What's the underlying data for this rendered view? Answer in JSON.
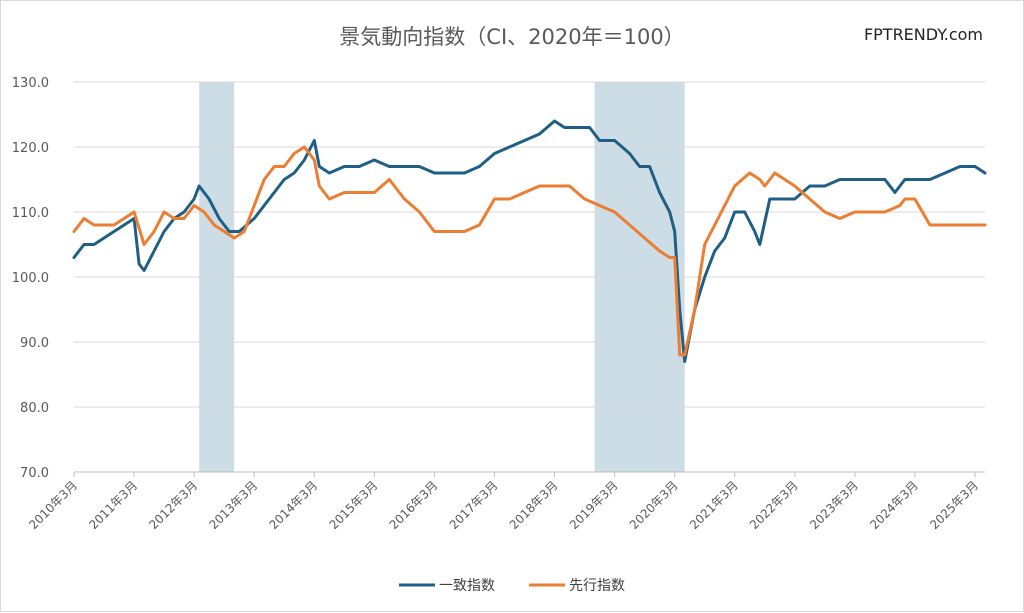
{
  "header": {
    "title": "景気動向指数（CI、2020年＝100）",
    "brand": "FPTRENDY.com"
  },
  "chart_data": {
    "type": "line",
    "title": "景気動向指数（CI、2020年＝100）",
    "xlabel": "",
    "ylabel": "",
    "ylim": [
      70,
      130
    ],
    "yticks": [
      "70.0",
      "80.0",
      "90.0",
      "100.0",
      "110.0",
      "120.0",
      "130.0"
    ],
    "x_range": [
      "2010-03",
      "2025-05"
    ],
    "xticks": [
      "2010年3月",
      "2011年3月",
      "2012年3月",
      "2013年3月",
      "2014年3月",
      "2015年3月",
      "2016年3月",
      "2017年3月",
      "2018年3月",
      "2019年3月",
      "2020年3月",
      "2021年3月",
      "2022年3月",
      "2023年3月",
      "2024年3月",
      "2025年3月"
    ],
    "grid": true,
    "legend_position": "bottom",
    "shaded_periods": [
      {
        "start": "2012-04",
        "end": "2012-11"
      },
      {
        "start": "2018-11",
        "end": "2020-05"
      }
    ],
    "series": [
      {
        "name": "一致指数",
        "color": "#1f5f86",
        "points": [
          [
            "2010-03",
            103
          ],
          [
            "2010-05",
            105
          ],
          [
            "2010-07",
            105
          ],
          [
            "2010-09",
            106
          ],
          [
            "2010-11",
            107
          ],
          [
            "2011-01",
            108
          ],
          [
            "2011-03",
            109
          ],
          [
            "2011-04",
            102
          ],
          [
            "2011-05",
            101
          ],
          [
            "2011-07",
            104
          ],
          [
            "2011-09",
            107
          ],
          [
            "2011-11",
            109
          ],
          [
            "2012-01",
            110
          ],
          [
            "2012-03",
            112
          ],
          [
            "2012-04",
            114
          ],
          [
            "2012-06",
            112
          ],
          [
            "2012-08",
            109
          ],
          [
            "2012-10",
            107
          ],
          [
            "2012-12",
            107
          ],
          [
            "2013-03",
            109
          ],
          [
            "2013-05",
            111
          ],
          [
            "2013-07",
            113
          ],
          [
            "2013-09",
            115
          ],
          [
            "2013-11",
            116
          ],
          [
            "2014-01",
            118
          ],
          [
            "2014-03",
            121
          ],
          [
            "2014-04",
            117
          ],
          [
            "2014-06",
            116
          ],
          [
            "2014-09",
            117
          ],
          [
            "2014-12",
            117
          ],
          [
            "2015-03",
            118
          ],
          [
            "2015-06",
            117
          ],
          [
            "2015-09",
            117
          ],
          [
            "2015-12",
            117
          ],
          [
            "2016-03",
            116
          ],
          [
            "2016-06",
            116
          ],
          [
            "2016-09",
            116
          ],
          [
            "2016-12",
            117
          ],
          [
            "2017-03",
            119
          ],
          [
            "2017-06",
            120
          ],
          [
            "2017-09",
            121
          ],
          [
            "2017-12",
            122
          ],
          [
            "2018-03",
            124
          ],
          [
            "2018-05",
            123
          ],
          [
            "2018-08",
            123
          ],
          [
            "2018-10",
            123
          ],
          [
            "2018-12",
            121
          ],
          [
            "2019-03",
            121
          ],
          [
            "2019-06",
            119
          ],
          [
            "2019-08",
            117
          ],
          [
            "2019-10",
            117
          ],
          [
            "2019-12",
            113
          ],
          [
            "2020-02",
            110
          ],
          [
            "2020-03",
            107
          ],
          [
            "2020-04",
            95
          ],
          [
            "2020-05",
            87
          ],
          [
            "2020-07",
            95
          ],
          [
            "2020-09",
            100
          ],
          [
            "2020-11",
            104
          ],
          [
            "2021-01",
            106
          ],
          [
            "2021-03",
            110
          ],
          [
            "2021-05",
            110
          ],
          [
            "2021-07",
            107
          ],
          [
            "2021-08",
            105
          ],
          [
            "2021-10",
            112
          ],
          [
            "2021-12",
            112
          ],
          [
            "2022-03",
            112
          ],
          [
            "2022-06",
            114
          ],
          [
            "2022-09",
            114
          ],
          [
            "2022-12",
            115
          ],
          [
            "2023-03",
            115
          ],
          [
            "2023-06",
            115
          ],
          [
            "2023-09",
            115
          ],
          [
            "2023-11",
            113
          ],
          [
            "2024-01",
            115
          ],
          [
            "2024-03",
            115
          ],
          [
            "2024-06",
            115
          ],
          [
            "2024-09",
            116
          ],
          [
            "2024-12",
            117
          ],
          [
            "2025-03",
            117
          ],
          [
            "2025-05",
            116
          ]
        ]
      },
      {
        "name": "先行指数",
        "color": "#ed7d31",
        "points": [
          [
            "2010-03",
            107
          ],
          [
            "2010-05",
            109
          ],
          [
            "2010-07",
            108
          ],
          [
            "2010-09",
            108
          ],
          [
            "2010-11",
            108
          ],
          [
            "2011-01",
            109
          ],
          [
            "2011-03",
            110
          ],
          [
            "2011-05",
            105
          ],
          [
            "2011-07",
            107
          ],
          [
            "2011-09",
            110
          ],
          [
            "2011-11",
            109
          ],
          [
            "2012-01",
            109
          ],
          [
            "2012-03",
            111
          ],
          [
            "2012-05",
            110
          ],
          [
            "2012-07",
            108
          ],
          [
            "2012-09",
            107
          ],
          [
            "2012-11",
            106
          ],
          [
            "2013-01",
            107
          ],
          [
            "2013-03",
            111
          ],
          [
            "2013-05",
            115
          ],
          [
            "2013-07",
            117
          ],
          [
            "2013-09",
            117
          ],
          [
            "2013-11",
            119
          ],
          [
            "2014-01",
            120
          ],
          [
            "2014-03",
            118
          ],
          [
            "2014-04",
            114
          ],
          [
            "2014-06",
            112
          ],
          [
            "2014-09",
            113
          ],
          [
            "2014-12",
            113
          ],
          [
            "2015-03",
            113
          ],
          [
            "2015-06",
            115
          ],
          [
            "2015-09",
            112
          ],
          [
            "2015-12",
            110
          ],
          [
            "2016-03",
            107
          ],
          [
            "2016-06",
            107
          ],
          [
            "2016-09",
            107
          ],
          [
            "2016-12",
            108
          ],
          [
            "2017-03",
            112
          ],
          [
            "2017-06",
            112
          ],
          [
            "2017-09",
            113
          ],
          [
            "2017-12",
            114
          ],
          [
            "2018-03",
            114
          ],
          [
            "2018-06",
            114
          ],
          [
            "2018-09",
            112
          ],
          [
            "2018-12",
            111
          ],
          [
            "2019-03",
            110
          ],
          [
            "2019-06",
            108
          ],
          [
            "2019-09",
            106
          ],
          [
            "2019-12",
            104
          ],
          [
            "2020-02",
            103
          ],
          [
            "2020-03",
            103
          ],
          [
            "2020-04",
            88
          ],
          [
            "2020-05",
            88
          ],
          [
            "2020-07",
            95
          ],
          [
            "2020-09",
            105
          ],
          [
            "2020-11",
            108
          ],
          [
            "2021-01",
            111
          ],
          [
            "2021-03",
            114
          ],
          [
            "2021-06",
            116
          ],
          [
            "2021-08",
            115
          ],
          [
            "2021-09",
            114
          ],
          [
            "2021-11",
            116
          ],
          [
            "2022-01",
            115
          ],
          [
            "2022-03",
            114
          ],
          [
            "2022-06",
            112
          ],
          [
            "2022-09",
            110
          ],
          [
            "2022-12",
            109
          ],
          [
            "2023-03",
            110
          ],
          [
            "2023-06",
            110
          ],
          [
            "2023-09",
            110
          ],
          [
            "2023-12",
            111
          ],
          [
            "2024-01",
            112
          ],
          [
            "2024-03",
            112
          ],
          [
            "2024-06",
            108
          ],
          [
            "2024-09",
            108
          ],
          [
            "2024-12",
            108
          ],
          [
            "2025-03",
            108
          ],
          [
            "2025-05",
            108
          ]
        ]
      }
    ]
  }
}
